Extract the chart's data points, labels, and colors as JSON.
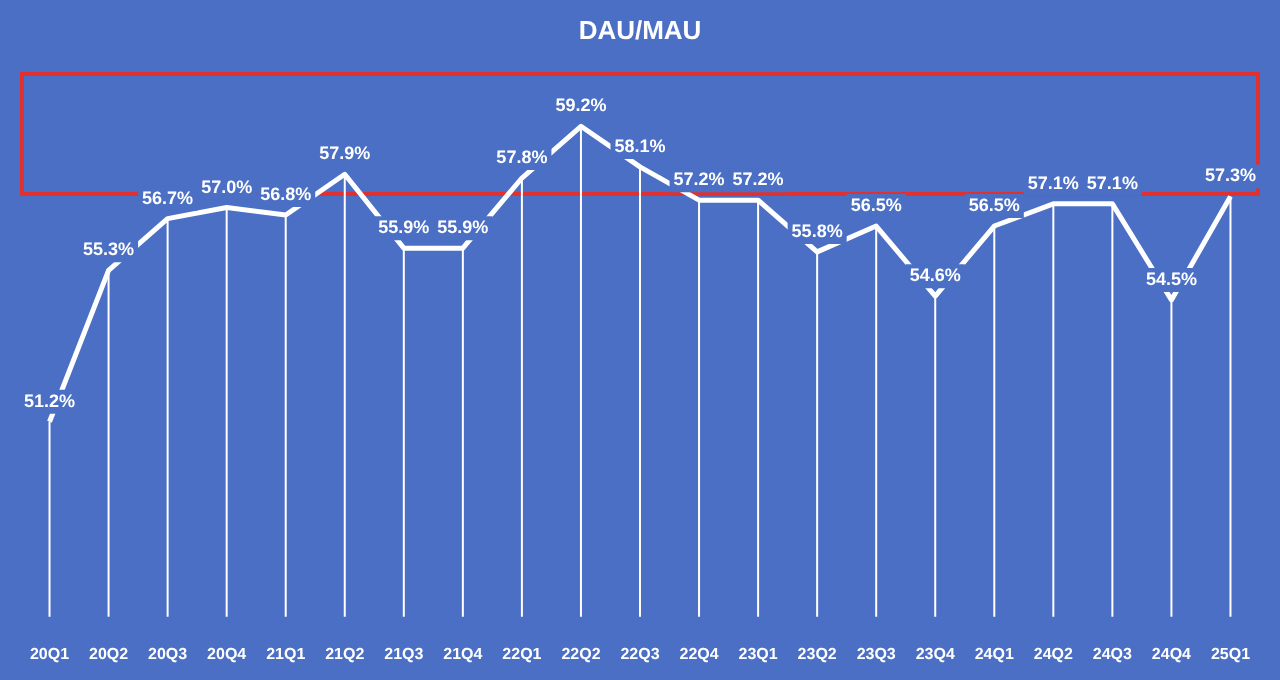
{
  "chart_data": {
    "type": "line",
    "title": "DAU/MAU",
    "categories": [
      "20Q1",
      "20Q2",
      "20Q3",
      "20Q4",
      "21Q1",
      "21Q2",
      "21Q3",
      "21Q4",
      "22Q1",
      "22Q2",
      "22Q3",
      "22Q4",
      "23Q1",
      "23Q2",
      "23Q3",
      "23Q4",
      "24Q1",
      "24Q2",
      "24Q3",
      "24Q4",
      "25Q1"
    ],
    "series": [
      {
        "color": "#ffffff",
        "values": [
          51.2,
          55.3,
          56.7,
          57.0,
          56.8,
          57.9,
          55.9,
          55.9,
          57.8,
          59.2,
          58.1,
          57.2,
          57.2,
          55.8,
          56.5,
          54.6,
          56.5,
          57.1,
          57.1,
          54.5,
          57.3
        ],
        "value_labels": [
          "51.2%",
          "55.3%",
          "56.7%",
          "57.0%",
          "56.8%",
          "57.9%",
          "55.9%",
          "55.9%",
          "57.8%",
          "59.2%",
          "58.1%",
          "57.2%",
          "57.2%",
          "55.8%",
          "56.5%",
          "54.6%",
          "56.5%",
          "57.1%",
          "57.1%",
          "54.5%",
          "57.3%"
        ]
      }
    ],
    "grid": "x",
    "legend": false,
    "marker": "none",
    "line_style": "solid"
  }
}
